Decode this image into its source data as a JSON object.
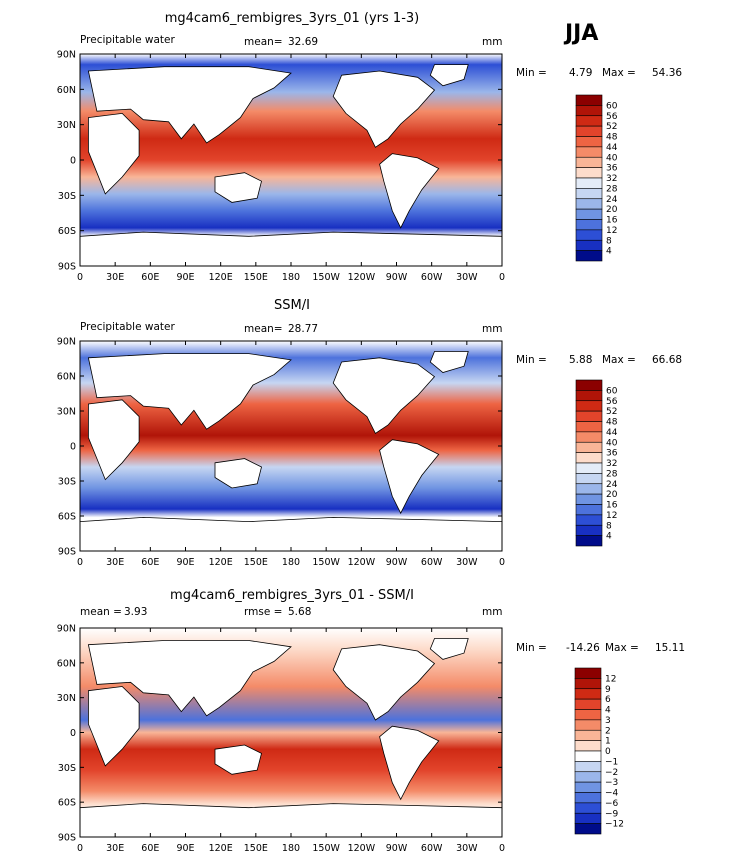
{
  "season": "JJA",
  "colors": {
    "land": "#ffffff",
    "coast": "#000000",
    "warm_strong": "#c8290f",
    "warm_light": "#fbd2bc",
    "cool_light": "#dbe7f7",
    "cool_strong": "#1a3fd0"
  },
  "chart_data": [
    {
      "type": "heatmap",
      "title": "mg4cam6_rembigres_3yrs_01 (yrs 1-3)",
      "left_label": "Precipitable water",
      "stat_label": "mean=",
      "stat_value": "32.69",
      "units": "mm",
      "min_label": "Min =",
      "min_value": "4.79",
      "max_label": "Max =",
      "max_value": "54.36",
      "x_ticks": [
        "0",
        "30E",
        "60E",
        "90E",
        "120E",
        "150E",
        "180",
        "150W",
        "120W",
        "90W",
        "60W",
        "30W",
        "0"
      ],
      "y_ticks": [
        "90N",
        "60N",
        "30N",
        "0",
        "30S",
        "60S",
        "90S"
      ],
      "xlim": [
        0,
        360
      ],
      "ylim": [
        -90,
        90
      ],
      "colorbar": {
        "levels": [
          "60",
          "56",
          "52",
          "48",
          "44",
          "40",
          "36",
          "32",
          "28",
          "24",
          "20",
          "16",
          "12",
          "8",
          "4"
        ],
        "colors": [
          "#8b0000",
          "#b01408",
          "#cf2a14",
          "#e2442b",
          "#ee6443",
          "#f48b68",
          "#f9b597",
          "#fddccb",
          "#e4ecf8",
          "#c6d6f2",
          "#9bb6ea",
          "#7094e2",
          "#4d72dc",
          "#2d4fd5",
          "#1830c2",
          "#000c8a"
        ]
      }
    },
    {
      "type": "heatmap",
      "title": "SSM/I",
      "left_label": "Precipitable water",
      "stat_label": "mean=",
      "stat_value": "28.77",
      "units": "mm",
      "min_label": "Min =",
      "min_value": "5.88",
      "max_label": "Max =",
      "max_value": "66.68",
      "x_ticks": [
        "0",
        "30E",
        "60E",
        "90E",
        "120E",
        "150E",
        "180",
        "150W",
        "120W",
        "90W",
        "60W",
        "30W",
        "0"
      ],
      "y_ticks": [
        "90N",
        "60N",
        "30N",
        "0",
        "30S",
        "60S",
        "90S"
      ],
      "xlim": [
        0,
        360
      ],
      "ylim": [
        -90,
        90
      ],
      "colorbar": {
        "levels": [
          "60",
          "56",
          "52",
          "48",
          "44",
          "40",
          "36",
          "32",
          "28",
          "24",
          "20",
          "16",
          "12",
          "8",
          "4"
        ],
        "colors": [
          "#8b0000",
          "#b01408",
          "#cf2a14",
          "#e2442b",
          "#ee6443",
          "#f48b68",
          "#f9b597",
          "#fddccb",
          "#e4ecf8",
          "#c6d6f2",
          "#9bb6ea",
          "#7094e2",
          "#4d72dc",
          "#2d4fd5",
          "#1830c2",
          "#000c8a"
        ]
      }
    },
    {
      "type": "heatmap",
      "title": "mg4cam6_rembigres_3yrs_01 - SSM/I",
      "left_label": "mean =",
      "left_value": "3.93",
      "stat_label": "rmse =",
      "stat_value": "5.68",
      "units": "mm",
      "min_label": "Min =",
      "min_value": "-14.26",
      "max_label": "Max =",
      "max_value": "15.11",
      "x_ticks": [
        "0",
        "30E",
        "60E",
        "90E",
        "120E",
        "150E",
        "180",
        "150W",
        "120W",
        "90W",
        "60W",
        "30W",
        "0"
      ],
      "y_ticks": [
        "90N",
        "60N",
        "30N",
        "0",
        "30S",
        "60S",
        "90S"
      ],
      "xlim": [
        0,
        360
      ],
      "ylim": [
        -90,
        90
      ],
      "colorbar": {
        "levels": [
          "12",
          "9",
          "6",
          "4",
          "3",
          "2",
          "1",
          "0",
          "−1",
          "−2",
          "−3",
          "−4",
          "−6",
          "−9",
          "−12"
        ],
        "colors": [
          "#8b0000",
          "#b01408",
          "#cf2a14",
          "#e2442b",
          "#ee6443",
          "#f48b68",
          "#f9b597",
          "#fddccb",
          "#ffffff",
          "#c6d6f2",
          "#9bb6ea",
          "#7094e2",
          "#4d72dc",
          "#2d4fd5",
          "#1830c2",
          "#000c8a"
        ]
      }
    }
  ]
}
